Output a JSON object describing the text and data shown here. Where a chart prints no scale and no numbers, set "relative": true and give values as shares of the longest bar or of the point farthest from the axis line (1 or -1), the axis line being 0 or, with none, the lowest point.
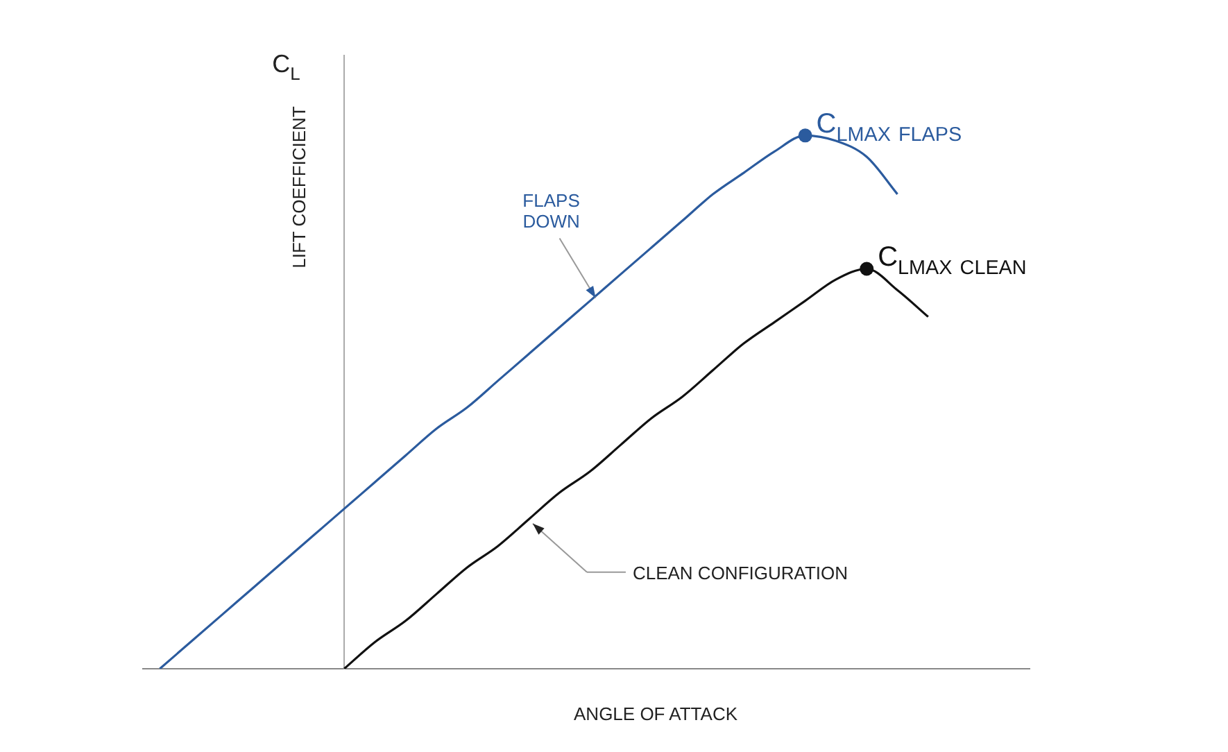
{
  "chart_data": {
    "type": "line",
    "relative": true,
    "xlabel": "ANGLE OF ATTACK",
    "ylabel": "LIFT COEFFICIENT",
    "categories": [
      null,
      null,
      null,
      null,
      null,
      null,
      null,
      null,
      null,
      null,
      null,
      null,
      null,
      null,
      null,
      null,
      null,
      null,
      null,
      null,
      null,
      null,
      null,
      null,
      null,
      null
    ],
    "series": [
      {
        "name": "FLAPS DOWN",
        "color": "#2b5b9e",
        "values": [
          0,
          0.05,
          0.1,
          0.15,
          0.2,
          0.25,
          0.3,
          0.35,
          0.4,
          0.45,
          0.49,
          0.54,
          0.59,
          0.64,
          0.69,
          0.74,
          0.79,
          0.84,
          0.89,
          0.93,
          0.97,
          1,
          0.99,
          0.96,
          0.89,
          null
        ]
      },
      {
        "name": "CLEAN CONFIGURATION",
        "color": "#111111",
        "values": [
          null,
          null,
          null,
          null,
          null,
          null,
          0,
          0.05,
          0.09,
          0.14,
          0.19,
          0.23,
          0.28,
          0.33,
          0.37,
          0.42,
          0.47,
          0.51,
          0.56,
          0.61,
          0.65,
          0.69,
          0.73,
          0.75,
          0.71,
          0.66
        ]
      }
    ],
    "annotations": [
      "C$_{L}$",
      "C$_{LMAX}$ $_{FLAPS}$",
      "C$_{LMAX}$ $_{CLEAN}$"
    ]
  }
}
